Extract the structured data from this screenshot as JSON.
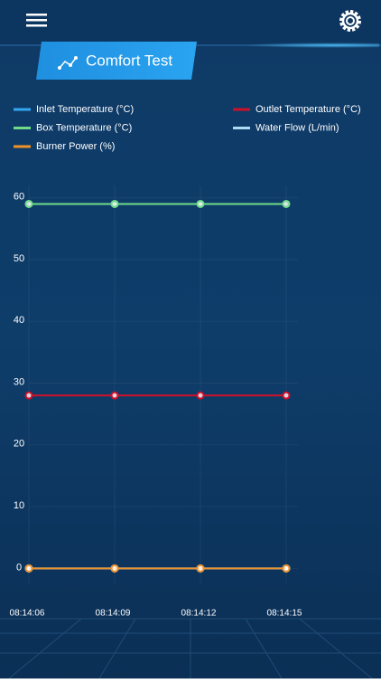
{
  "header": {
    "title": "Comfort Test"
  },
  "chart_data": {
    "type": "line",
    "categories": [
      "08:14:06",
      "08:14:09",
      "08:14:12",
      "08:14:15"
    ],
    "series": [
      {
        "name": "Inlet Temperature (°C)",
        "color": "#35a7f0",
        "values": [
          0,
          0,
          0,
          0
        ]
      },
      {
        "name": "Outlet Temperature (°C)",
        "color": "#d0102a",
        "values": [
          28,
          28,
          28,
          28
        ]
      },
      {
        "name": "Box Temperature (°C)",
        "color": "#6fdc8a",
        "values": [
          59,
          59,
          59,
          59
        ]
      },
      {
        "name": "Water Flow (L/min)",
        "color": "#a9dcf7",
        "values": [
          0,
          0,
          0,
          0
        ]
      },
      {
        "name": "Burner Power (%)",
        "color": "#f0922a",
        "values": [
          0,
          0,
          0,
          0
        ]
      }
    ],
    "ylim": [
      -2,
      62
    ],
    "yticks": [
      0,
      10,
      20,
      30,
      40,
      50,
      60
    ],
    "grid": true
  }
}
